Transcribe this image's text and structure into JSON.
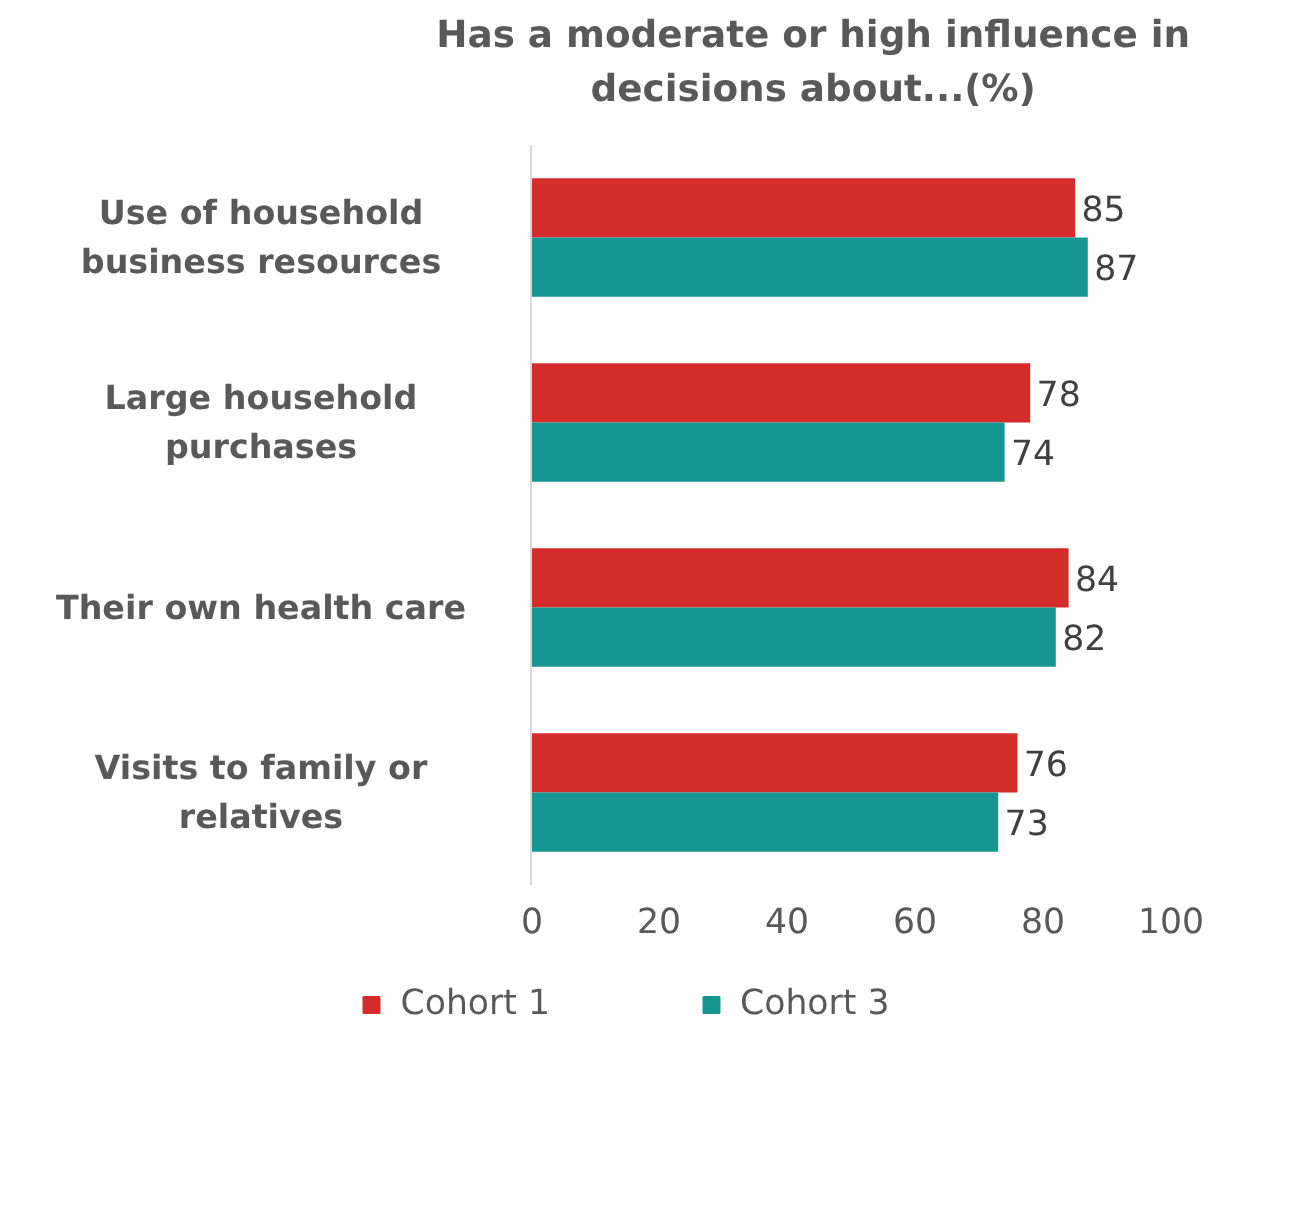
{
  "chart_data": {
    "type": "bar",
    "orientation": "horizontal",
    "title": "Has a moderate or high influence in decisions about...(%)",
    "categories": [
      "Use of household business resources",
      "Large household purchases",
      "Their own health care",
      "Visits to family or relatives"
    ],
    "series": [
      {
        "name": "Cohort 1",
        "color": "#d42b2b",
        "values": [
          85,
          78,
          84,
          76
        ]
      },
      {
        "name": "Cohort 3",
        "color": "#169693",
        "values": [
          87,
          74,
          82,
          73
        ]
      }
    ],
    "xlim": [
      0,
      100
    ],
    "xticks": [
      0,
      20,
      40,
      60,
      80,
      100
    ],
    "data_labels": true,
    "grid": false,
    "legend": "bottom"
  }
}
